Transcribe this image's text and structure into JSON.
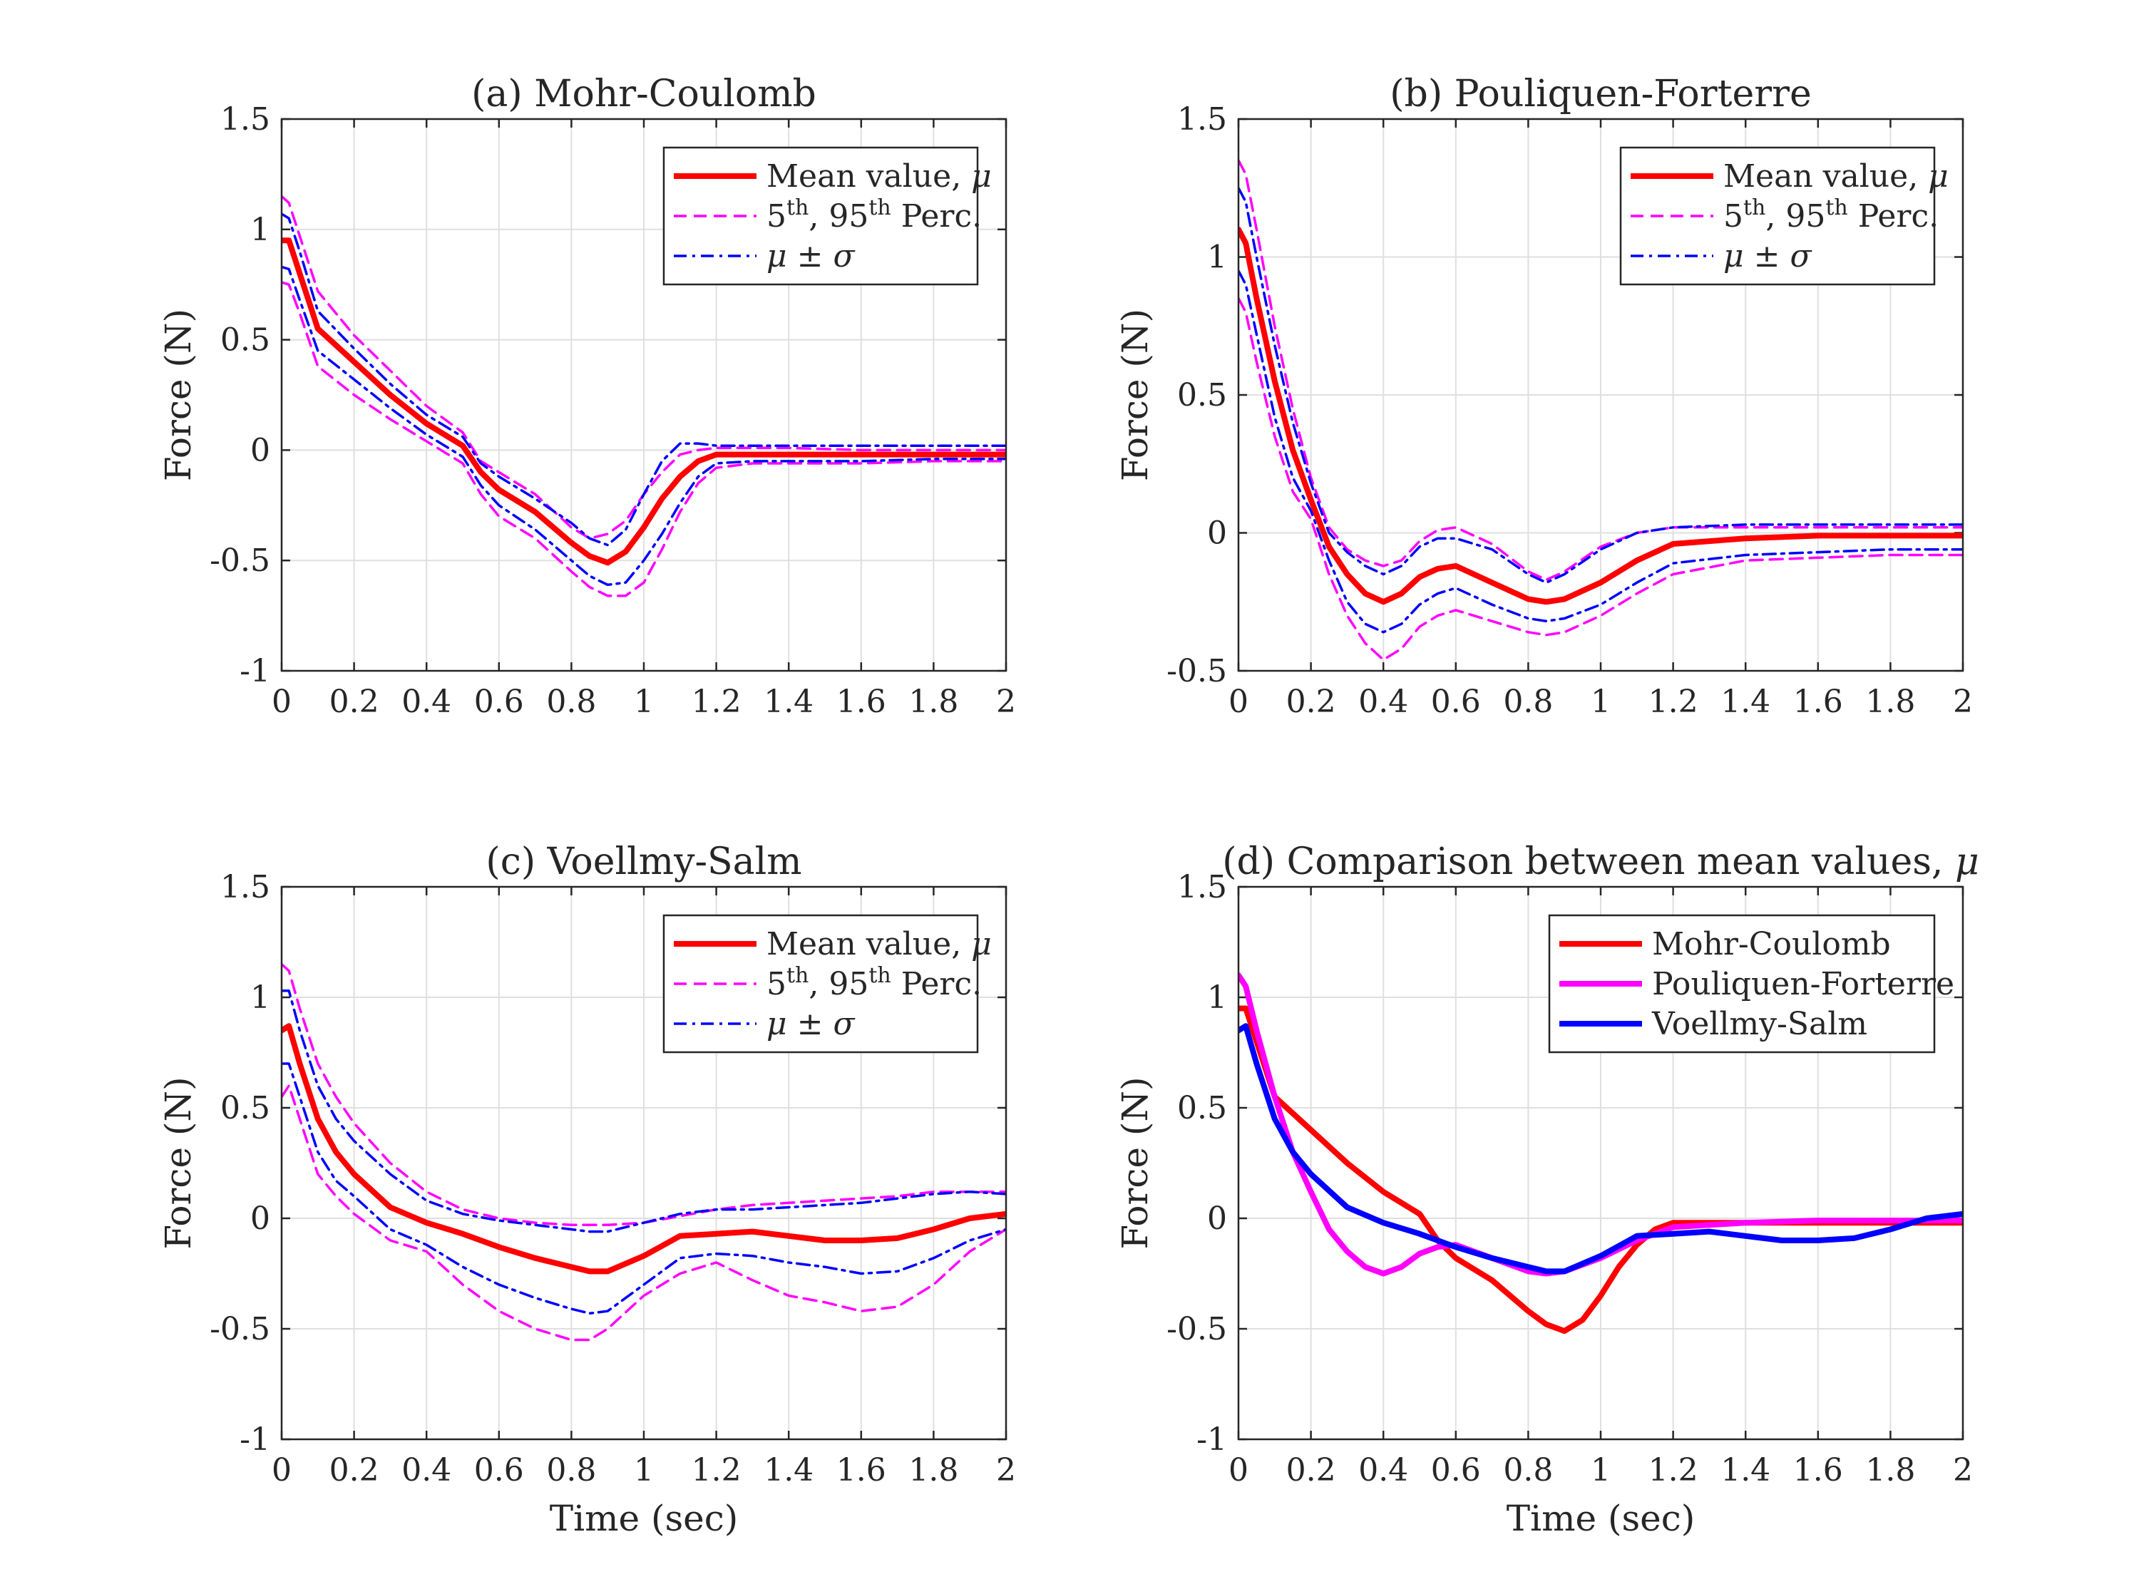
{
  "colors": {
    "mean": "#ff0000",
    "percentiles": "#ff00ff",
    "sigma": "#0000ff",
    "mohr_coulomb": "#ff0000",
    "pouliquen_forterre": "#ff00ff",
    "voellmy_salm": "#0000ff"
  },
  "chart_data": [
    {
      "type": "line",
      "title": "(a) Mohr-Coulomb",
      "xlabel": "",
      "ylabel": "Force (N)",
      "xlim": [
        0,
        2
      ],
      "ylim": [
        -1,
        1.5
      ],
      "xticks": [
        "0",
        "0.2",
        "0.4",
        "0.6",
        "0.8",
        "1",
        "1.2",
        "1.4",
        "1.6",
        "1.8",
        "2"
      ],
      "yticks": [
        "-1",
        "-0.5",
        "0",
        "0.5",
        "1",
        "1.5"
      ],
      "grid": true,
      "legend_position": "top-right",
      "x": [
        0,
        0.02,
        0.05,
        0.1,
        0.2,
        0.3,
        0.4,
        0.5,
        0.55,
        0.6,
        0.7,
        0.8,
        0.85,
        0.9,
        0.95,
        1.0,
        1.05,
        1.1,
        1.15,
        1.2,
        1.3,
        1.4,
        1.6,
        1.8,
        2.0
      ],
      "series": [
        {
          "name": "Mean value, μ",
          "legend_parts": [
            "Mean value, ",
            "μ"
          ],
          "style": "mean",
          "values": [
            0.95,
            0.95,
            0.8,
            0.55,
            0.4,
            0.25,
            0.12,
            0.02,
            -0.1,
            -0.18,
            -0.28,
            -0.42,
            -0.48,
            -0.51,
            -0.46,
            -0.35,
            -0.22,
            -0.12,
            -0.05,
            -0.02,
            -0.02,
            -0.02,
            -0.02,
            -0.02,
            -0.02
          ]
        },
        {
          "name": "5th, 95th Perc.",
          "legend_parts": [
            "5",
            "th",
            ", 95",
            "th",
            " Perc."
          ],
          "style": "percentiles",
          "values": [
            1.15,
            1.12,
            0.97,
            0.72,
            0.52,
            0.36,
            0.2,
            0.08,
            -0.05,
            -0.1,
            -0.2,
            -0.35,
            -0.4,
            -0.38,
            -0.32,
            -0.2,
            -0.1,
            -0.02,
            0.0,
            0.01,
            0.01,
            0.01,
            0.0,
            0.0,
            0.0
          ]
        },
        {
          "name": "5th, 95th Perc.",
          "legend_parts": [],
          "style": "percentiles",
          "values": [
            0.76,
            0.75,
            0.62,
            0.38,
            0.25,
            0.14,
            0.04,
            -0.06,
            -0.2,
            -0.3,
            -0.4,
            -0.55,
            -0.62,
            -0.66,
            -0.66,
            -0.6,
            -0.45,
            -0.28,
            -0.15,
            -0.08,
            -0.06,
            -0.06,
            -0.06,
            -0.05,
            -0.05
          ]
        },
        {
          "name": "μ ± σ",
          "legend_parts": [
            "μ",
            " ± ",
            "σ"
          ],
          "style": "sigma",
          "values": [
            1.07,
            1.05,
            0.9,
            0.63,
            0.46,
            0.3,
            0.16,
            0.06,
            -0.06,
            -0.12,
            -0.22,
            -0.33,
            -0.4,
            -0.43,
            -0.36,
            -0.2,
            -0.05,
            0.03,
            0.03,
            0.02,
            0.02,
            0.02,
            0.02,
            0.02,
            0.02
          ]
        },
        {
          "name": "μ ± σ",
          "legend_parts": [],
          "style": "sigma",
          "values": [
            0.83,
            0.82,
            0.68,
            0.45,
            0.32,
            0.19,
            0.07,
            -0.03,
            -0.16,
            -0.25,
            -0.36,
            -0.5,
            -0.57,
            -0.61,
            -0.6,
            -0.5,
            -0.38,
            -0.24,
            -0.12,
            -0.06,
            -0.05,
            -0.05,
            -0.05,
            -0.04,
            -0.04
          ]
        }
      ]
    },
    {
      "type": "line",
      "title": "(b) Pouliquen-Forterre",
      "xlabel": "",
      "ylabel": "Force (N)",
      "xlim": [
        0,
        2
      ],
      "ylim": [
        -0.5,
        1.5
      ],
      "xticks": [
        "0",
        "0.2",
        "0.4",
        "0.6",
        "0.8",
        "1",
        "1.2",
        "1.4",
        "1.6",
        "1.8",
        "2"
      ],
      "yticks": [
        "-0.5",
        "0",
        "0.5",
        "1",
        "1.5"
      ],
      "grid": true,
      "legend_position": "top-right",
      "x": [
        0,
        0.02,
        0.05,
        0.1,
        0.15,
        0.2,
        0.25,
        0.3,
        0.35,
        0.4,
        0.45,
        0.5,
        0.55,
        0.6,
        0.7,
        0.8,
        0.85,
        0.9,
        1.0,
        1.1,
        1.2,
        1.4,
        1.6,
        1.8,
        2.0
      ],
      "series": [
        {
          "name": "Mean value, μ",
          "legend_parts": [
            "Mean value, ",
            "μ"
          ],
          "style": "mean",
          "values": [
            1.1,
            1.05,
            0.85,
            0.55,
            0.3,
            0.12,
            -0.05,
            -0.15,
            -0.22,
            -0.25,
            -0.22,
            -0.16,
            -0.13,
            -0.12,
            -0.18,
            -0.24,
            -0.25,
            -0.24,
            -0.18,
            -0.1,
            -0.04,
            -0.02,
            -0.01,
            -0.01,
            -0.01
          ]
        },
        {
          "name": "5th, 95th Perc.",
          "legend_parts": [
            "5",
            "th",
            ", 95",
            "th",
            " Perc."
          ],
          "style": "percentiles",
          "values": [
            1.35,
            1.3,
            1.1,
            0.75,
            0.45,
            0.2,
            0.02,
            -0.06,
            -0.1,
            -0.12,
            -0.1,
            -0.03,
            0.01,
            0.02,
            -0.04,
            -0.14,
            -0.17,
            -0.14,
            -0.05,
            0.0,
            0.02,
            0.02,
            0.02,
            0.02,
            0.02
          ]
        },
        {
          "name": "5th, 95th Perc.",
          "legend_parts": [],
          "style": "percentiles",
          "values": [
            0.85,
            0.8,
            0.62,
            0.35,
            0.15,
            0.05,
            -0.15,
            -0.3,
            -0.4,
            -0.46,
            -0.42,
            -0.34,
            -0.3,
            -0.28,
            -0.32,
            -0.36,
            -0.37,
            -0.36,
            -0.3,
            -0.22,
            -0.15,
            -0.1,
            -0.09,
            -0.08,
            -0.08
          ]
        },
        {
          "name": "μ ± σ",
          "legend_parts": [
            "μ",
            " ± ",
            "σ"
          ],
          "style": "sigma",
          "values": [
            1.25,
            1.2,
            1.0,
            0.68,
            0.4,
            0.18,
            0.0,
            -0.07,
            -0.12,
            -0.15,
            -0.12,
            -0.05,
            -0.02,
            -0.02,
            -0.06,
            -0.15,
            -0.18,
            -0.15,
            -0.06,
            0.0,
            0.02,
            0.03,
            0.03,
            0.03,
            0.03
          ]
        },
        {
          "name": "μ ± σ",
          "legend_parts": [],
          "style": "sigma",
          "values": [
            0.95,
            0.9,
            0.72,
            0.42,
            0.2,
            0.08,
            -0.1,
            -0.25,
            -0.33,
            -0.36,
            -0.33,
            -0.26,
            -0.22,
            -0.2,
            -0.26,
            -0.31,
            -0.32,
            -0.31,
            -0.26,
            -0.18,
            -0.11,
            -0.08,
            -0.07,
            -0.06,
            -0.06
          ]
        }
      ]
    },
    {
      "type": "line",
      "title": "(c) Voellmy-Salm",
      "xlabel": "Time (sec)",
      "ylabel": "Force (N)",
      "xlim": [
        0,
        2
      ],
      "ylim": [
        -1,
        1.5
      ],
      "xticks": [
        "0",
        "0.2",
        "0.4",
        "0.6",
        "0.8",
        "1",
        "1.2",
        "1.4",
        "1.6",
        "1.8",
        "2"
      ],
      "yticks": [
        "-1",
        "-0.5",
        "0",
        "0.5",
        "1",
        "1.5"
      ],
      "grid": true,
      "legend_position": "top-right",
      "x": [
        0,
        0.02,
        0.05,
        0.1,
        0.15,
        0.2,
        0.3,
        0.4,
        0.5,
        0.6,
        0.7,
        0.8,
        0.85,
        0.9,
        1.0,
        1.1,
        1.2,
        1.3,
        1.4,
        1.5,
        1.6,
        1.7,
        1.8,
        1.9,
        2.0
      ],
      "series": [
        {
          "name": "Mean value, μ",
          "legend_parts": [
            "Mean value, ",
            "μ"
          ],
          "style": "mean",
          "values": [
            0.85,
            0.87,
            0.7,
            0.45,
            0.3,
            0.2,
            0.05,
            -0.02,
            -0.07,
            -0.13,
            -0.18,
            -0.22,
            -0.24,
            -0.24,
            -0.17,
            -0.08,
            -0.07,
            -0.06,
            -0.08,
            -0.1,
            -0.1,
            -0.09,
            -0.05,
            0.0,
            0.02
          ]
        },
        {
          "name": "5th, 95th Perc.",
          "legend_parts": [
            "5",
            "th",
            ", 95",
            "th",
            " Perc."
          ],
          "style": "percentiles",
          "values": [
            1.15,
            1.12,
            0.95,
            0.7,
            0.55,
            0.43,
            0.25,
            0.12,
            0.04,
            0.0,
            -0.02,
            -0.03,
            -0.03,
            -0.03,
            -0.02,
            0.01,
            0.04,
            0.06,
            0.07,
            0.08,
            0.09,
            0.1,
            0.12,
            0.12,
            0.12
          ]
        },
        {
          "name": "5th, 95th Perc.",
          "legend_parts": [],
          "style": "percentiles",
          "values": [
            0.55,
            0.6,
            0.45,
            0.2,
            0.1,
            0.02,
            -0.1,
            -0.15,
            -0.3,
            -0.42,
            -0.5,
            -0.55,
            -0.55,
            -0.5,
            -0.35,
            -0.25,
            -0.2,
            -0.28,
            -0.35,
            -0.38,
            -0.42,
            -0.4,
            -0.3,
            -0.15,
            -0.05
          ]
        },
        {
          "name": "μ ± σ",
          "legend_parts": [
            "μ",
            " ± ",
            "σ"
          ],
          "style": "sigma",
          "values": [
            1.03,
            1.03,
            0.85,
            0.6,
            0.45,
            0.35,
            0.2,
            0.08,
            0.02,
            -0.01,
            -0.03,
            -0.05,
            -0.06,
            -0.06,
            -0.02,
            0.02,
            0.04,
            0.04,
            0.05,
            0.06,
            0.07,
            0.09,
            0.11,
            0.12,
            0.11
          ]
        },
        {
          "name": "μ ± σ",
          "legend_parts": [],
          "style": "sigma",
          "values": [
            0.7,
            0.7,
            0.55,
            0.3,
            0.17,
            0.1,
            -0.05,
            -0.12,
            -0.22,
            -0.3,
            -0.36,
            -0.41,
            -0.43,
            -0.42,
            -0.3,
            -0.18,
            -0.16,
            -0.17,
            -0.2,
            -0.22,
            -0.25,
            -0.24,
            -0.18,
            -0.1,
            -0.05
          ]
        }
      ]
    },
    {
      "type": "line",
      "title": "(d) Comparison between mean values, μ",
      "title_parts": [
        "(d) Comparison between mean values, ",
        "μ"
      ],
      "xlabel": "Time (sec)",
      "ylabel": "Force (N)",
      "xlim": [
        0,
        2
      ],
      "ylim": [
        -1,
        1.5
      ],
      "xticks": [
        "0",
        "0.2",
        "0.4",
        "0.6",
        "0.8",
        "1",
        "1.2",
        "1.4",
        "1.6",
        "1.8",
        "2"
      ],
      "yticks": [
        "-1",
        "-0.5",
        "0",
        "0.5",
        "1",
        "1.5"
      ],
      "grid": true,
      "legend_position": "top-right",
      "series": [
        {
          "name": "Mohr-Coulomb",
          "legend_parts": [
            "Mohr-Coulomb"
          ],
          "style": "mohr_coulomb",
          "x": [
            0,
            0.02,
            0.05,
            0.1,
            0.2,
            0.3,
            0.4,
            0.5,
            0.55,
            0.6,
            0.7,
            0.8,
            0.85,
            0.9,
            0.95,
            1.0,
            1.05,
            1.1,
            1.15,
            1.2,
            1.3,
            1.4,
            1.6,
            1.8,
            2.0
          ],
          "values": [
            0.95,
            0.95,
            0.8,
            0.55,
            0.4,
            0.25,
            0.12,
            0.02,
            -0.1,
            -0.18,
            -0.28,
            -0.42,
            -0.48,
            -0.51,
            -0.46,
            -0.35,
            -0.22,
            -0.12,
            -0.05,
            -0.02,
            -0.02,
            -0.02,
            -0.02,
            -0.02,
            -0.02
          ]
        },
        {
          "name": "Pouliquen-Forterre",
          "legend_parts": [
            "Pouliquen-Forterre"
          ],
          "style": "pouliquen_forterre",
          "x": [
            0,
            0.02,
            0.05,
            0.1,
            0.15,
            0.2,
            0.25,
            0.3,
            0.35,
            0.4,
            0.45,
            0.5,
            0.55,
            0.6,
            0.7,
            0.8,
            0.85,
            0.9,
            1.0,
            1.1,
            1.2,
            1.4,
            1.6,
            1.8,
            2.0
          ],
          "values": [
            1.1,
            1.05,
            0.85,
            0.55,
            0.3,
            0.12,
            -0.05,
            -0.15,
            -0.22,
            -0.25,
            -0.22,
            -0.16,
            -0.13,
            -0.12,
            -0.18,
            -0.24,
            -0.25,
            -0.24,
            -0.18,
            -0.1,
            -0.04,
            -0.02,
            -0.01,
            -0.01,
            -0.01
          ]
        },
        {
          "name": "Voellmy-Salm",
          "legend_parts": [
            "Voellmy-Salm"
          ],
          "style": "voellmy_salm",
          "x": [
            0,
            0.02,
            0.05,
            0.1,
            0.15,
            0.2,
            0.3,
            0.4,
            0.5,
            0.6,
            0.7,
            0.8,
            0.85,
            0.9,
            1.0,
            1.1,
            1.2,
            1.3,
            1.4,
            1.5,
            1.6,
            1.7,
            1.8,
            1.9,
            2.0
          ],
          "values": [
            0.85,
            0.87,
            0.7,
            0.45,
            0.3,
            0.2,
            0.05,
            -0.02,
            -0.07,
            -0.13,
            -0.18,
            -0.22,
            -0.24,
            -0.24,
            -0.17,
            -0.08,
            -0.07,
            -0.06,
            -0.08,
            -0.1,
            -0.1,
            -0.09,
            -0.05,
            0.0,
            0.02
          ]
        }
      ]
    }
  ]
}
